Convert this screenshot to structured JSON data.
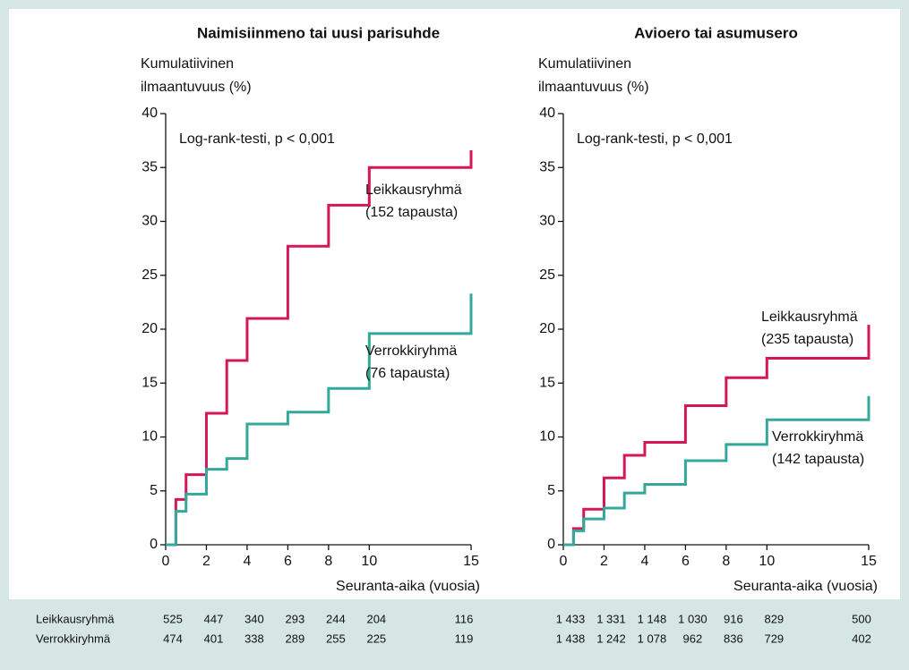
{
  "chart_data": [
    {
      "type": "step",
      "title": "Naimisiinmeno tai uusi parisuhde",
      "y_label": [
        "Kumulatiivinen",
        "ilmaantuvuus (%)"
      ],
      "x_label": "Seuranta-aika (vuosia)",
      "annotation": "Log-rank-testi, p < 0,001",
      "xlim": [
        0,
        15
      ],
      "xticks": [
        0,
        2,
        4,
        6,
        8,
        10,
        15
      ],
      "ylim": [
        0,
        40
      ],
      "yticks": [
        0,
        5,
        10,
        15,
        20,
        25,
        30,
        35,
        40
      ],
      "x": [
        0,
        0.5,
        1,
        2,
        3,
        4,
        6,
        8,
        10,
        15
      ],
      "series": [
        {
          "name": "Leikkausryhmä",
          "note": "(152 tapausta)",
          "color": "#d5175a",
          "values": [
            0,
            4.2,
            6.5,
            12.2,
            17.1,
            21,
            27.7,
            31.5,
            35,
            36.6
          ]
        },
        {
          "name": "Verrokkiryhmä",
          "note": "(76 tapausta)",
          "color": "#34a89a",
          "values": [
            0,
            3.1,
            4.7,
            7,
            8,
            11.2,
            12.3,
            14.5,
            19.6,
            23.3
          ]
        }
      ],
      "risk_table": {
        "rows": [
          {
            "label": "Leikkausryhmä",
            "values": [
              "525",
              "447",
              "340",
              "293",
              "244",
              "204",
              "116"
            ]
          },
          {
            "label": "Verrokkiryhmä",
            "values": [
              "474",
              "401",
              "338",
              "289",
              "255",
              "225",
              "119"
            ]
          }
        ]
      }
    },
    {
      "type": "step",
      "title": "Avioero tai asumusero",
      "y_label": [
        "Kumulatiivinen",
        "ilmaantuvuus (%)"
      ],
      "x_label": "Seuranta-aika (vuosia)",
      "annotation": "Log-rank-testi, p < 0,001",
      "xlim": [
        0,
        15
      ],
      "xticks": [
        0,
        2,
        4,
        6,
        8,
        10,
        15
      ],
      "ylim": [
        0,
        40
      ],
      "yticks": [
        0,
        5,
        10,
        15,
        20,
        25,
        30,
        35,
        40
      ],
      "x": [
        0,
        0.5,
        1,
        2,
        3,
        4,
        6,
        8,
        10,
        15
      ],
      "series": [
        {
          "name": "Leikkausryhmä",
          "note": "(235 tapausta)",
          "color": "#d5175a",
          "values": [
            0,
            1.5,
            3.3,
            6.2,
            8.3,
            9.5,
            12.9,
            15.5,
            17.3,
            20.4
          ]
        },
        {
          "name": "Verrokkiryhmä",
          "note": "(142 tapausta)",
          "color": "#34a89a",
          "values": [
            0,
            1.3,
            2.4,
            3.4,
            4.8,
            5.6,
            7.8,
            9.3,
            11.6,
            13.8
          ]
        }
      ],
      "risk_table": {
        "rows": [
          {
            "label": "Leikkausryhmä",
            "values": [
              "1 433",
              "1 331",
              "1 148",
              "1 030",
              "916",
              "829",
              "500"
            ]
          },
          {
            "label": "Verrokkiryhmä",
            "values": [
              "1 438",
              "1 242",
              "1 078",
              "962",
              "836",
              "729",
              "402"
            ]
          }
        ]
      }
    }
  ]
}
